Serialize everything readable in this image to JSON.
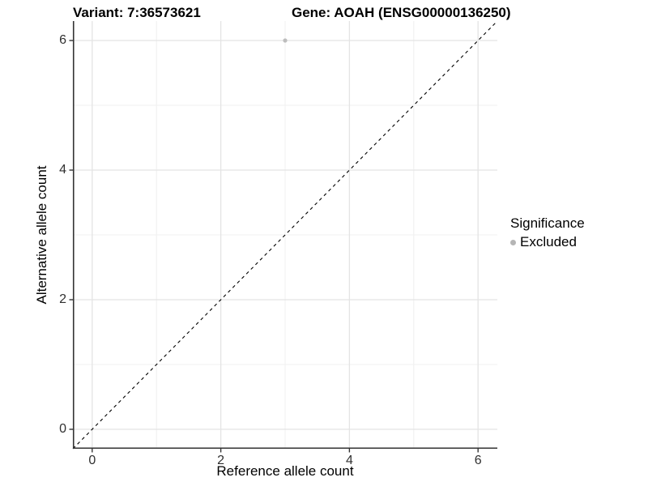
{
  "titles": {
    "variant": "Variant: 7:36573621",
    "gene": "Gene: AOAH (ENSG00000136250)"
  },
  "axes": {
    "x_label": "Reference allele count",
    "y_label": "Alternative allele count"
  },
  "legend": {
    "title": "Significance",
    "items": [
      {
        "label": "Excluded",
        "color": "#b5b5b5"
      }
    ]
  },
  "colors": {
    "background": "#ffffff",
    "axis_line": "#333333",
    "tick_label": "#303030",
    "grid_major": "#e4e4e4",
    "grid_minor": "#f0f0f0",
    "point": "#bdbdbd",
    "reference_line": "#000000"
  },
  "chart_data": {
    "type": "scatter",
    "title": "Variant: 7:36573621 | Gene: AOAH (ENSG00000136250)",
    "xlabel": "Reference allele count",
    "ylabel": "Alternative allele count",
    "xlim": [
      -0.3,
      6.3
    ],
    "ylim": [
      -0.3,
      6.3
    ],
    "x_ticks": [
      0,
      2,
      4,
      6
    ],
    "y_ticks": [
      0,
      2,
      4,
      6
    ],
    "x_minor_ticks": [
      1,
      3,
      5
    ],
    "y_minor_ticks": [
      1,
      3,
      5
    ],
    "grid": "major+minor",
    "legend_position": "right",
    "series": [
      {
        "name": "Excluded",
        "color": "#bdbdbd",
        "points": [
          {
            "x": 3,
            "y": 6
          }
        ]
      }
    ],
    "reference_line": {
      "kind": "identity-diagonal",
      "equation": "y = x",
      "style": "dashed",
      "color": "#000000"
    }
  }
}
